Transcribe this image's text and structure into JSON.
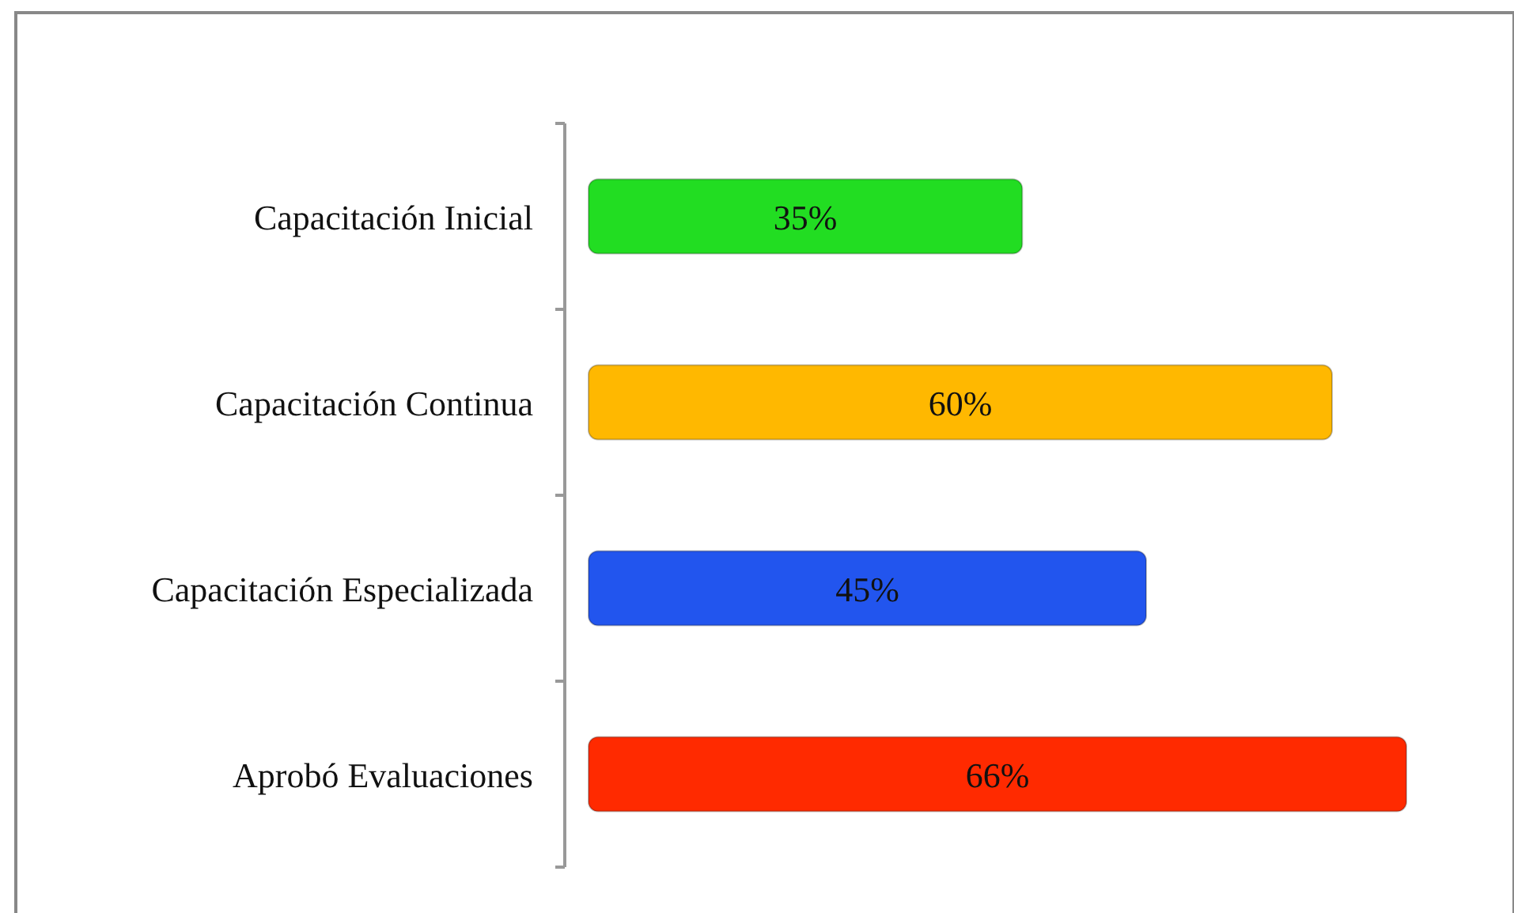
{
  "chart_data": {
    "type": "bar",
    "orientation": "horizontal",
    "categories": [
      "Capacitación Inicial",
      "Capacitación Continua",
      "Capacitación Especializada",
      "Aprobó Evaluaciones"
    ],
    "values": [
      35,
      60,
      45,
      66
    ],
    "colors": [
      "#22dd22",
      "#ffb800",
      "#2255ee",
      "#ff2a00"
    ],
    "value_labels": [
      "35%",
      "60%",
      "45%",
      "66%"
    ]
  }
}
